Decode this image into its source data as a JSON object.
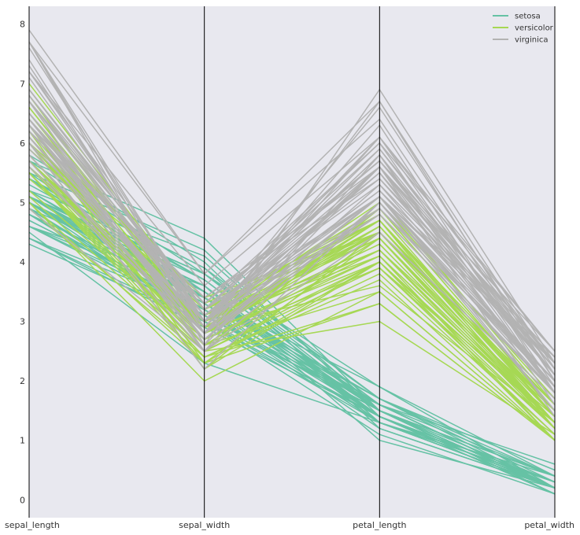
{
  "chart_data": {
    "type": "line",
    "subtype": "parallel_coordinates",
    "categories": [
      "sepal_length",
      "sepal_width",
      "petal_length",
      "petal_width"
    ],
    "ylim": [
      -0.3,
      8.3
    ],
    "yticks": [
      "0",
      "1",
      "2",
      "3",
      "4",
      "5",
      "6",
      "7",
      "8"
    ],
    "grid": false,
    "legend_position": "top-right",
    "colors": {
      "background": "#e8e8ef",
      "axis": "#000000",
      "setosa": "#66c2a5",
      "versicolor": "#a6d854",
      "virginica": "#b3b3b3"
    },
    "series": [
      {
        "name": "setosa",
        "values": [
          [
            5.1,
            3.5,
            1.4,
            0.2
          ],
          [
            4.9,
            3.0,
            1.4,
            0.2
          ],
          [
            4.7,
            3.2,
            1.3,
            0.2
          ],
          [
            4.6,
            3.1,
            1.5,
            0.2
          ],
          [
            5.0,
            3.6,
            1.4,
            0.2
          ],
          [
            5.4,
            3.9,
            1.7,
            0.4
          ],
          [
            4.6,
            3.4,
            1.4,
            0.3
          ],
          [
            5.0,
            3.4,
            1.5,
            0.2
          ],
          [
            4.4,
            2.9,
            1.4,
            0.2
          ],
          [
            4.9,
            3.1,
            1.5,
            0.1
          ],
          [
            5.4,
            3.7,
            1.5,
            0.2
          ],
          [
            4.8,
            3.4,
            1.6,
            0.2
          ],
          [
            4.8,
            3.0,
            1.4,
            0.1
          ],
          [
            4.3,
            3.0,
            1.1,
            0.1
          ],
          [
            5.8,
            4.0,
            1.2,
            0.2
          ],
          [
            5.7,
            4.4,
            1.5,
            0.4
          ],
          [
            5.4,
            3.9,
            1.3,
            0.4
          ],
          [
            5.1,
            3.5,
            1.4,
            0.3
          ],
          [
            5.7,
            3.8,
            1.7,
            0.3
          ],
          [
            5.1,
            3.8,
            1.5,
            0.3
          ],
          [
            5.4,
            3.4,
            1.7,
            0.2
          ],
          [
            5.1,
            3.7,
            1.5,
            0.4
          ],
          [
            4.6,
            3.6,
            1.0,
            0.2
          ],
          [
            5.1,
            3.3,
            1.7,
            0.5
          ],
          [
            4.8,
            3.4,
            1.9,
            0.2
          ],
          [
            5.0,
            3.0,
            1.6,
            0.2
          ],
          [
            5.0,
            3.4,
            1.6,
            0.4
          ],
          [
            5.2,
            3.5,
            1.5,
            0.2
          ],
          [
            5.2,
            3.4,
            1.4,
            0.2
          ],
          [
            4.7,
            3.2,
            1.6,
            0.2
          ],
          [
            4.8,
            3.1,
            1.6,
            0.2
          ],
          [
            5.4,
            3.4,
            1.5,
            0.4
          ],
          [
            5.2,
            4.1,
            1.5,
            0.1
          ],
          [
            5.5,
            4.2,
            1.4,
            0.2
          ],
          [
            4.9,
            3.1,
            1.5,
            0.2
          ],
          [
            5.0,
            3.2,
            1.2,
            0.2
          ],
          [
            5.5,
            3.5,
            1.3,
            0.2
          ],
          [
            4.9,
            3.6,
            1.4,
            0.1
          ],
          [
            4.4,
            3.0,
            1.3,
            0.2
          ],
          [
            5.1,
            3.4,
            1.5,
            0.2
          ],
          [
            5.0,
            3.5,
            1.3,
            0.3
          ],
          [
            4.5,
            2.3,
            1.3,
            0.3
          ],
          [
            4.4,
            3.2,
            1.3,
            0.2
          ],
          [
            5.0,
            3.5,
            1.6,
            0.6
          ],
          [
            5.1,
            3.8,
            1.9,
            0.4
          ],
          [
            4.8,
            3.0,
            1.4,
            0.3
          ],
          [
            5.1,
            3.8,
            1.6,
            0.2
          ],
          [
            4.6,
            3.2,
            1.4,
            0.2
          ],
          [
            5.3,
            3.7,
            1.5,
            0.2
          ],
          [
            5.0,
            3.3,
            1.4,
            0.2
          ]
        ]
      },
      {
        "name": "versicolor",
        "values": [
          [
            7.0,
            3.2,
            4.7,
            1.4
          ],
          [
            6.4,
            3.2,
            4.5,
            1.5
          ],
          [
            6.9,
            3.1,
            4.9,
            1.5
          ],
          [
            5.5,
            2.3,
            4.0,
            1.3
          ],
          [
            6.5,
            2.8,
            4.6,
            1.5
          ],
          [
            5.7,
            2.8,
            4.5,
            1.3
          ],
          [
            6.3,
            3.3,
            4.7,
            1.6
          ],
          [
            4.9,
            2.4,
            3.3,
            1.0
          ],
          [
            6.6,
            2.9,
            4.6,
            1.3
          ],
          [
            5.2,
            2.7,
            3.9,
            1.4
          ],
          [
            5.0,
            2.0,
            3.5,
            1.0
          ],
          [
            5.9,
            3.0,
            4.2,
            1.5
          ],
          [
            6.0,
            2.2,
            4.0,
            1.0
          ],
          [
            6.1,
            2.9,
            4.7,
            1.4
          ],
          [
            5.6,
            2.9,
            3.6,
            1.3
          ],
          [
            6.7,
            3.1,
            4.4,
            1.4
          ],
          [
            5.6,
            3.0,
            4.5,
            1.5
          ],
          [
            5.8,
            2.7,
            4.1,
            1.0
          ],
          [
            6.2,
            2.2,
            4.5,
            1.5
          ],
          [
            5.6,
            2.5,
            3.9,
            1.1
          ],
          [
            5.9,
            3.2,
            4.8,
            1.8
          ],
          [
            6.1,
            2.8,
            4.0,
            1.3
          ],
          [
            6.3,
            2.5,
            4.9,
            1.5
          ],
          [
            6.1,
            2.8,
            4.7,
            1.2
          ],
          [
            6.4,
            2.9,
            4.3,
            1.3
          ],
          [
            6.6,
            3.0,
            4.4,
            1.4
          ],
          [
            6.8,
            2.8,
            4.8,
            1.4
          ],
          [
            6.7,
            3.0,
            5.0,
            1.7
          ],
          [
            6.0,
            2.9,
            4.5,
            1.5
          ],
          [
            5.7,
            2.6,
            3.5,
            1.0
          ],
          [
            5.5,
            2.4,
            3.8,
            1.1
          ],
          [
            5.5,
            2.4,
            3.7,
            1.0
          ],
          [
            5.8,
            2.7,
            3.9,
            1.2
          ],
          [
            6.0,
            2.7,
            5.1,
            1.6
          ],
          [
            5.4,
            3.0,
            4.5,
            1.5
          ],
          [
            6.0,
            3.4,
            4.5,
            1.6
          ],
          [
            6.7,
            3.1,
            4.7,
            1.5
          ],
          [
            6.3,
            2.3,
            4.4,
            1.3
          ],
          [
            5.6,
            3.0,
            4.1,
            1.3
          ],
          [
            5.5,
            2.5,
            4.0,
            1.3
          ],
          [
            5.5,
            2.6,
            4.4,
            1.2
          ],
          [
            6.1,
            3.0,
            4.6,
            1.4
          ],
          [
            5.8,
            2.6,
            4.0,
            1.2
          ],
          [
            5.0,
            2.3,
            3.3,
            1.0
          ],
          [
            5.6,
            2.7,
            4.2,
            1.3
          ],
          [
            5.7,
            3.0,
            4.2,
            1.2
          ],
          [
            5.7,
            2.9,
            4.2,
            1.3
          ],
          [
            6.2,
            2.9,
            4.3,
            1.3
          ],
          [
            5.1,
            2.5,
            3.0,
            1.1
          ],
          [
            5.7,
            2.8,
            4.1,
            1.3
          ]
        ]
      },
      {
        "name": "virginica",
        "values": [
          [
            6.3,
            3.3,
            6.0,
            2.5
          ],
          [
            5.8,
            2.7,
            5.1,
            1.9
          ],
          [
            7.1,
            3.0,
            5.9,
            2.1
          ],
          [
            6.3,
            2.9,
            5.6,
            1.8
          ],
          [
            6.5,
            3.0,
            5.8,
            2.2
          ],
          [
            7.6,
            3.0,
            6.6,
            2.1
          ],
          [
            4.9,
            2.5,
            4.5,
            1.7
          ],
          [
            7.3,
            2.9,
            6.3,
            1.8
          ],
          [
            6.7,
            2.5,
            5.8,
            1.8
          ],
          [
            7.2,
            3.6,
            6.1,
            2.5
          ],
          [
            6.5,
            3.2,
            5.1,
            2.0
          ],
          [
            6.4,
            2.7,
            5.3,
            1.9
          ],
          [
            6.8,
            3.0,
            5.5,
            2.1
          ],
          [
            5.7,
            2.5,
            5.0,
            2.0
          ],
          [
            5.8,
            2.8,
            5.1,
            2.4
          ],
          [
            6.4,
            3.2,
            5.3,
            2.3
          ],
          [
            6.5,
            3.0,
            5.5,
            1.8
          ],
          [
            7.7,
            3.8,
            6.7,
            2.2
          ],
          [
            7.7,
            2.6,
            6.9,
            2.3
          ],
          [
            6.0,
            2.2,
            5.0,
            1.5
          ],
          [
            6.9,
            3.2,
            5.7,
            2.3
          ],
          [
            5.6,
            2.8,
            4.9,
            2.0
          ],
          [
            7.7,
            2.8,
            6.7,
            2.0
          ],
          [
            6.3,
            2.7,
            4.9,
            1.8
          ],
          [
            6.7,
            3.3,
            5.7,
            2.1
          ],
          [
            7.2,
            3.2,
            6.0,
            1.8
          ],
          [
            6.2,
            2.8,
            4.8,
            1.8
          ],
          [
            6.1,
            3.0,
            4.9,
            1.8
          ],
          [
            6.4,
            2.8,
            5.6,
            2.1
          ],
          [
            7.2,
            3.0,
            5.8,
            1.6
          ],
          [
            7.4,
            2.8,
            6.1,
            1.9
          ],
          [
            7.9,
            3.8,
            6.4,
            2.0
          ],
          [
            6.4,
            2.8,
            5.6,
            2.2
          ],
          [
            6.3,
            2.8,
            5.1,
            1.5
          ],
          [
            6.1,
            2.6,
            5.6,
            1.4
          ],
          [
            7.7,
            3.0,
            6.1,
            2.3
          ],
          [
            6.3,
            3.4,
            5.6,
            2.4
          ],
          [
            6.4,
            3.1,
            5.5,
            1.8
          ],
          [
            6.0,
            3.0,
            4.8,
            1.8
          ],
          [
            6.9,
            3.1,
            5.4,
            2.1
          ],
          [
            6.7,
            3.1,
            5.6,
            2.4
          ],
          [
            6.9,
            3.1,
            5.1,
            2.3
          ],
          [
            5.8,
            2.7,
            5.1,
            1.9
          ],
          [
            6.8,
            3.2,
            5.9,
            2.3
          ],
          [
            6.7,
            3.3,
            5.7,
            2.5
          ],
          [
            6.7,
            3.0,
            5.2,
            2.3
          ],
          [
            6.3,
            2.5,
            5.0,
            1.9
          ],
          [
            6.5,
            3.0,
            5.2,
            2.0
          ],
          [
            6.2,
            3.4,
            5.4,
            2.3
          ],
          [
            5.9,
            3.0,
            5.1,
            1.8
          ]
        ]
      }
    ]
  }
}
